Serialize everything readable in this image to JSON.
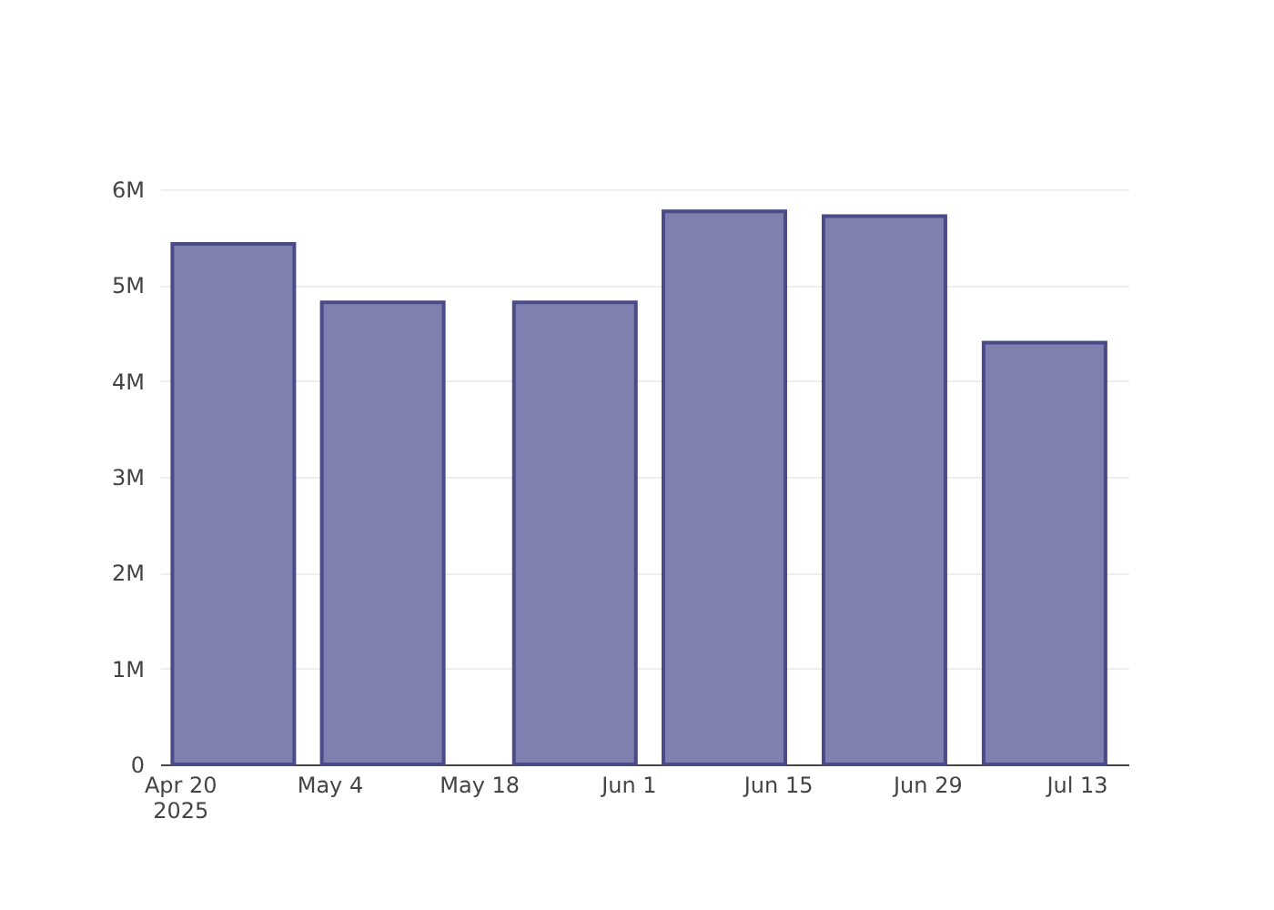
{
  "chart_data": {
    "type": "bar",
    "x": [
      "2025-04-25",
      "2025-05-09",
      "2025-05-27",
      "2025-06-10",
      "2025-06-25",
      "2025-07-10"
    ],
    "series": [
      {
        "color": "#7f7fb0",
        "values": [
          5430000,
          4820000,
          4820000,
          5770000,
          5720000,
          4400000
        ]
      }
    ],
    "xlim": [
      "2025-04-19",
      "2025-07-17"
    ],
    "xticks": [
      {
        "value": "2025-04-20",
        "label": "Apr 20\n2025"
      },
      {
        "value": "2025-05-04",
        "label": "May 4"
      },
      {
        "value": "2025-05-18",
        "label": "May 18"
      },
      {
        "value": "2025-06-01",
        "label": "Jun 1"
      },
      {
        "value": "2025-06-15",
        "label": "Jun 15"
      },
      {
        "value": "2025-06-29",
        "label": "Jun 29"
      },
      {
        "value": "2025-07-13",
        "label": "Jul 13"
      }
    ],
    "ylim": [
      0,
      6000000
    ],
    "yticks": [
      0,
      {
        "value": 1000000,
        "label": "1M"
      },
      {
        "value": 2000000,
        "label": "2M"
      },
      {
        "value": 3000000,
        "label": "3M"
      },
      {
        "value": 4000000,
        "label": "4M"
      },
      {
        "value": 5000000,
        "label": "5M"
      },
      {
        "value": 6000000,
        "label": "6M"
      }
    ],
    "grid": "y"
  }
}
